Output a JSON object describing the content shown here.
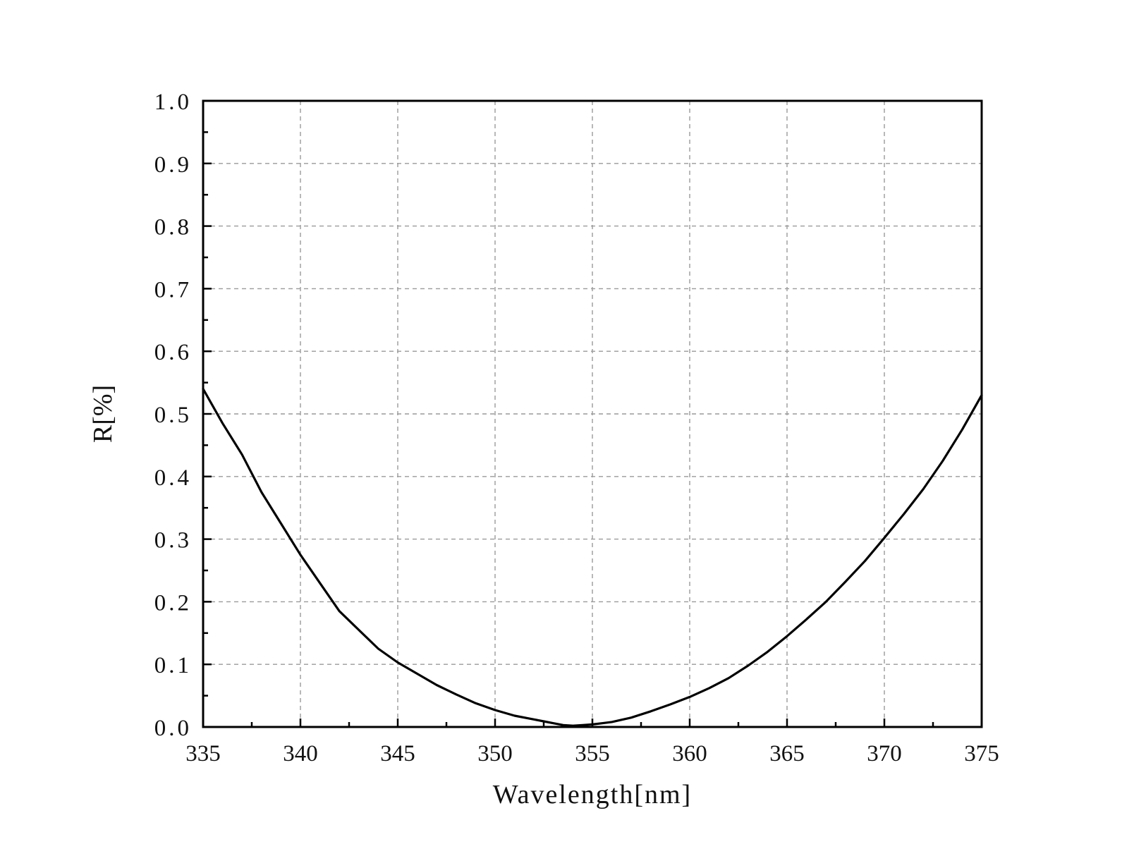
{
  "chart_data": {
    "type": "line",
    "title": "",
    "xlabel": "Wavelength[nm]",
    "ylabel": "R[%]",
    "xlim": [
      335,
      375
    ],
    "ylim": [
      0.0,
      1.0
    ],
    "x_ticks": [
      335,
      340,
      345,
      350,
      355,
      360,
      365,
      370,
      375
    ],
    "x_tick_labels": [
      "335",
      "340",
      "345",
      "350",
      "355",
      "360",
      "365",
      "370",
      "375"
    ],
    "y_ticks": [
      0.0,
      0.1,
      0.2,
      0.3,
      0.4,
      0.5,
      0.6,
      0.7,
      0.8,
      0.9,
      1.0
    ],
    "y_tick_labels": [
      "0.0",
      "0.1",
      "0.2",
      "0.3",
      "0.4",
      "0.5",
      "0.6",
      "0.7",
      "0.8",
      "0.9",
      "1.0"
    ],
    "grid": true,
    "grid_style": "dashed",
    "legend": "none",
    "line_color": "#000000",
    "series": [
      {
        "x": [
          335,
          336,
          337,
          338,
          339,
          340,
          341,
          342,
          343,
          344,
          345,
          346,
          347,
          348,
          349,
          350,
          351,
          352,
          352.5,
          353,
          353.5,
          354,
          354.5,
          355,
          355.5,
          356,
          357,
          358,
          359,
          360,
          361,
          362,
          363,
          364,
          365,
          366,
          367,
          368,
          369,
          370,
          371,
          372,
          373,
          374,
          375
        ],
        "y": [
          0.54,
          0.485,
          0.435,
          0.375,
          0.325,
          0.275,
          0.23,
          0.185,
          0.155,
          0.125,
          0.103,
          0.085,
          0.067,
          0.052,
          0.038,
          0.027,
          0.018,
          0.012,
          0.009,
          0.006,
          0.003,
          0.002,
          0.003,
          0.004,
          0.006,
          0.008,
          0.015,
          0.025,
          0.036,
          0.048,
          0.062,
          0.078,
          0.098,
          0.12,
          0.145,
          0.172,
          0.2,
          0.232,
          0.265,
          0.302,
          0.34,
          0.38,
          0.425,
          0.475,
          0.53
        ]
      }
    ]
  }
}
